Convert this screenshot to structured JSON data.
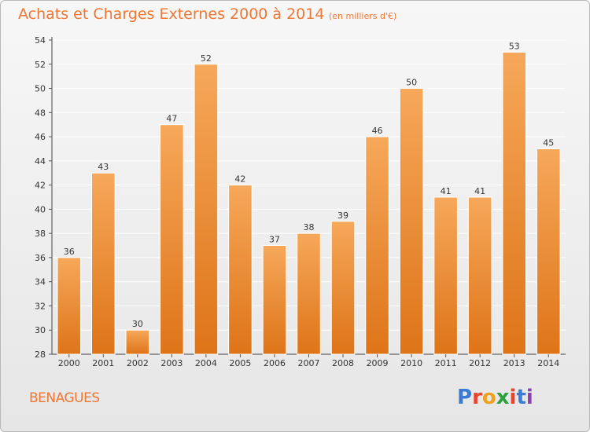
{
  "header": {
    "title": "Achats et Charges Externes 2000 à 2014",
    "unit_note": "(en milliers d'€)"
  },
  "footer": {
    "commune": "BENAGUES",
    "logo_text": "Proxiti",
    "logo_colors": [
      "#3a7bd5",
      "#e8432e",
      "#f0a020",
      "#2e9e3e",
      "#e8432e",
      "#3a7bd5",
      "#8c3fb5"
    ]
  },
  "colors": {
    "bar_top": "#f6a85a",
    "bar_bottom": "#de7418",
    "title": "#ee7733",
    "grid": "#ffffff"
  },
  "chart_data": {
    "type": "bar",
    "categories": [
      "2000",
      "2001",
      "2002",
      "2003",
      "2004",
      "2005",
      "2006",
      "2007",
      "2008",
      "2009",
      "2010",
      "2011",
      "2012",
      "2013",
      "2014"
    ],
    "values": [
      36,
      43,
      30,
      47,
      52,
      42,
      37,
      38,
      39,
      46,
      50,
      41,
      41,
      53,
      45
    ],
    "ylim": [
      28,
      54
    ],
    "yticks": [
      28,
      30,
      32,
      34,
      36,
      38,
      40,
      42,
      44,
      46,
      48,
      50,
      52,
      54
    ],
    "grid": true,
    "data_labels": true
  }
}
